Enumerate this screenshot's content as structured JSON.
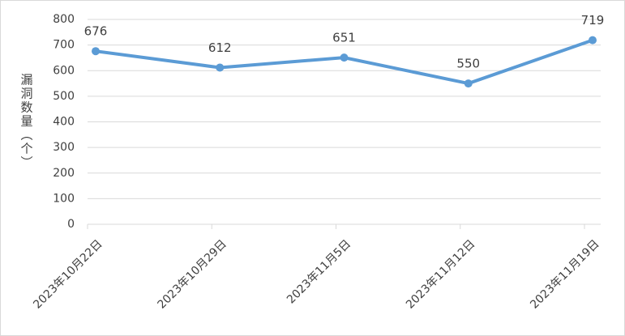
{
  "chart_data": {
    "type": "line",
    "y_label": "漏洞数量（个）",
    "categories": [
      "2023年10月22日",
      "2023年10月29日",
      "2023年11月5日",
      "2023年11月12日",
      "2023年11月19日"
    ],
    "values": [
      676,
      612,
      651,
      550,
      719
    ],
    "color": "#5b9bd5",
    "ylim": [
      0,
      800
    ],
    "yticks": [
      0,
      100,
      200,
      300,
      400,
      500,
      600,
      700,
      800
    ],
    "grid": true
  }
}
